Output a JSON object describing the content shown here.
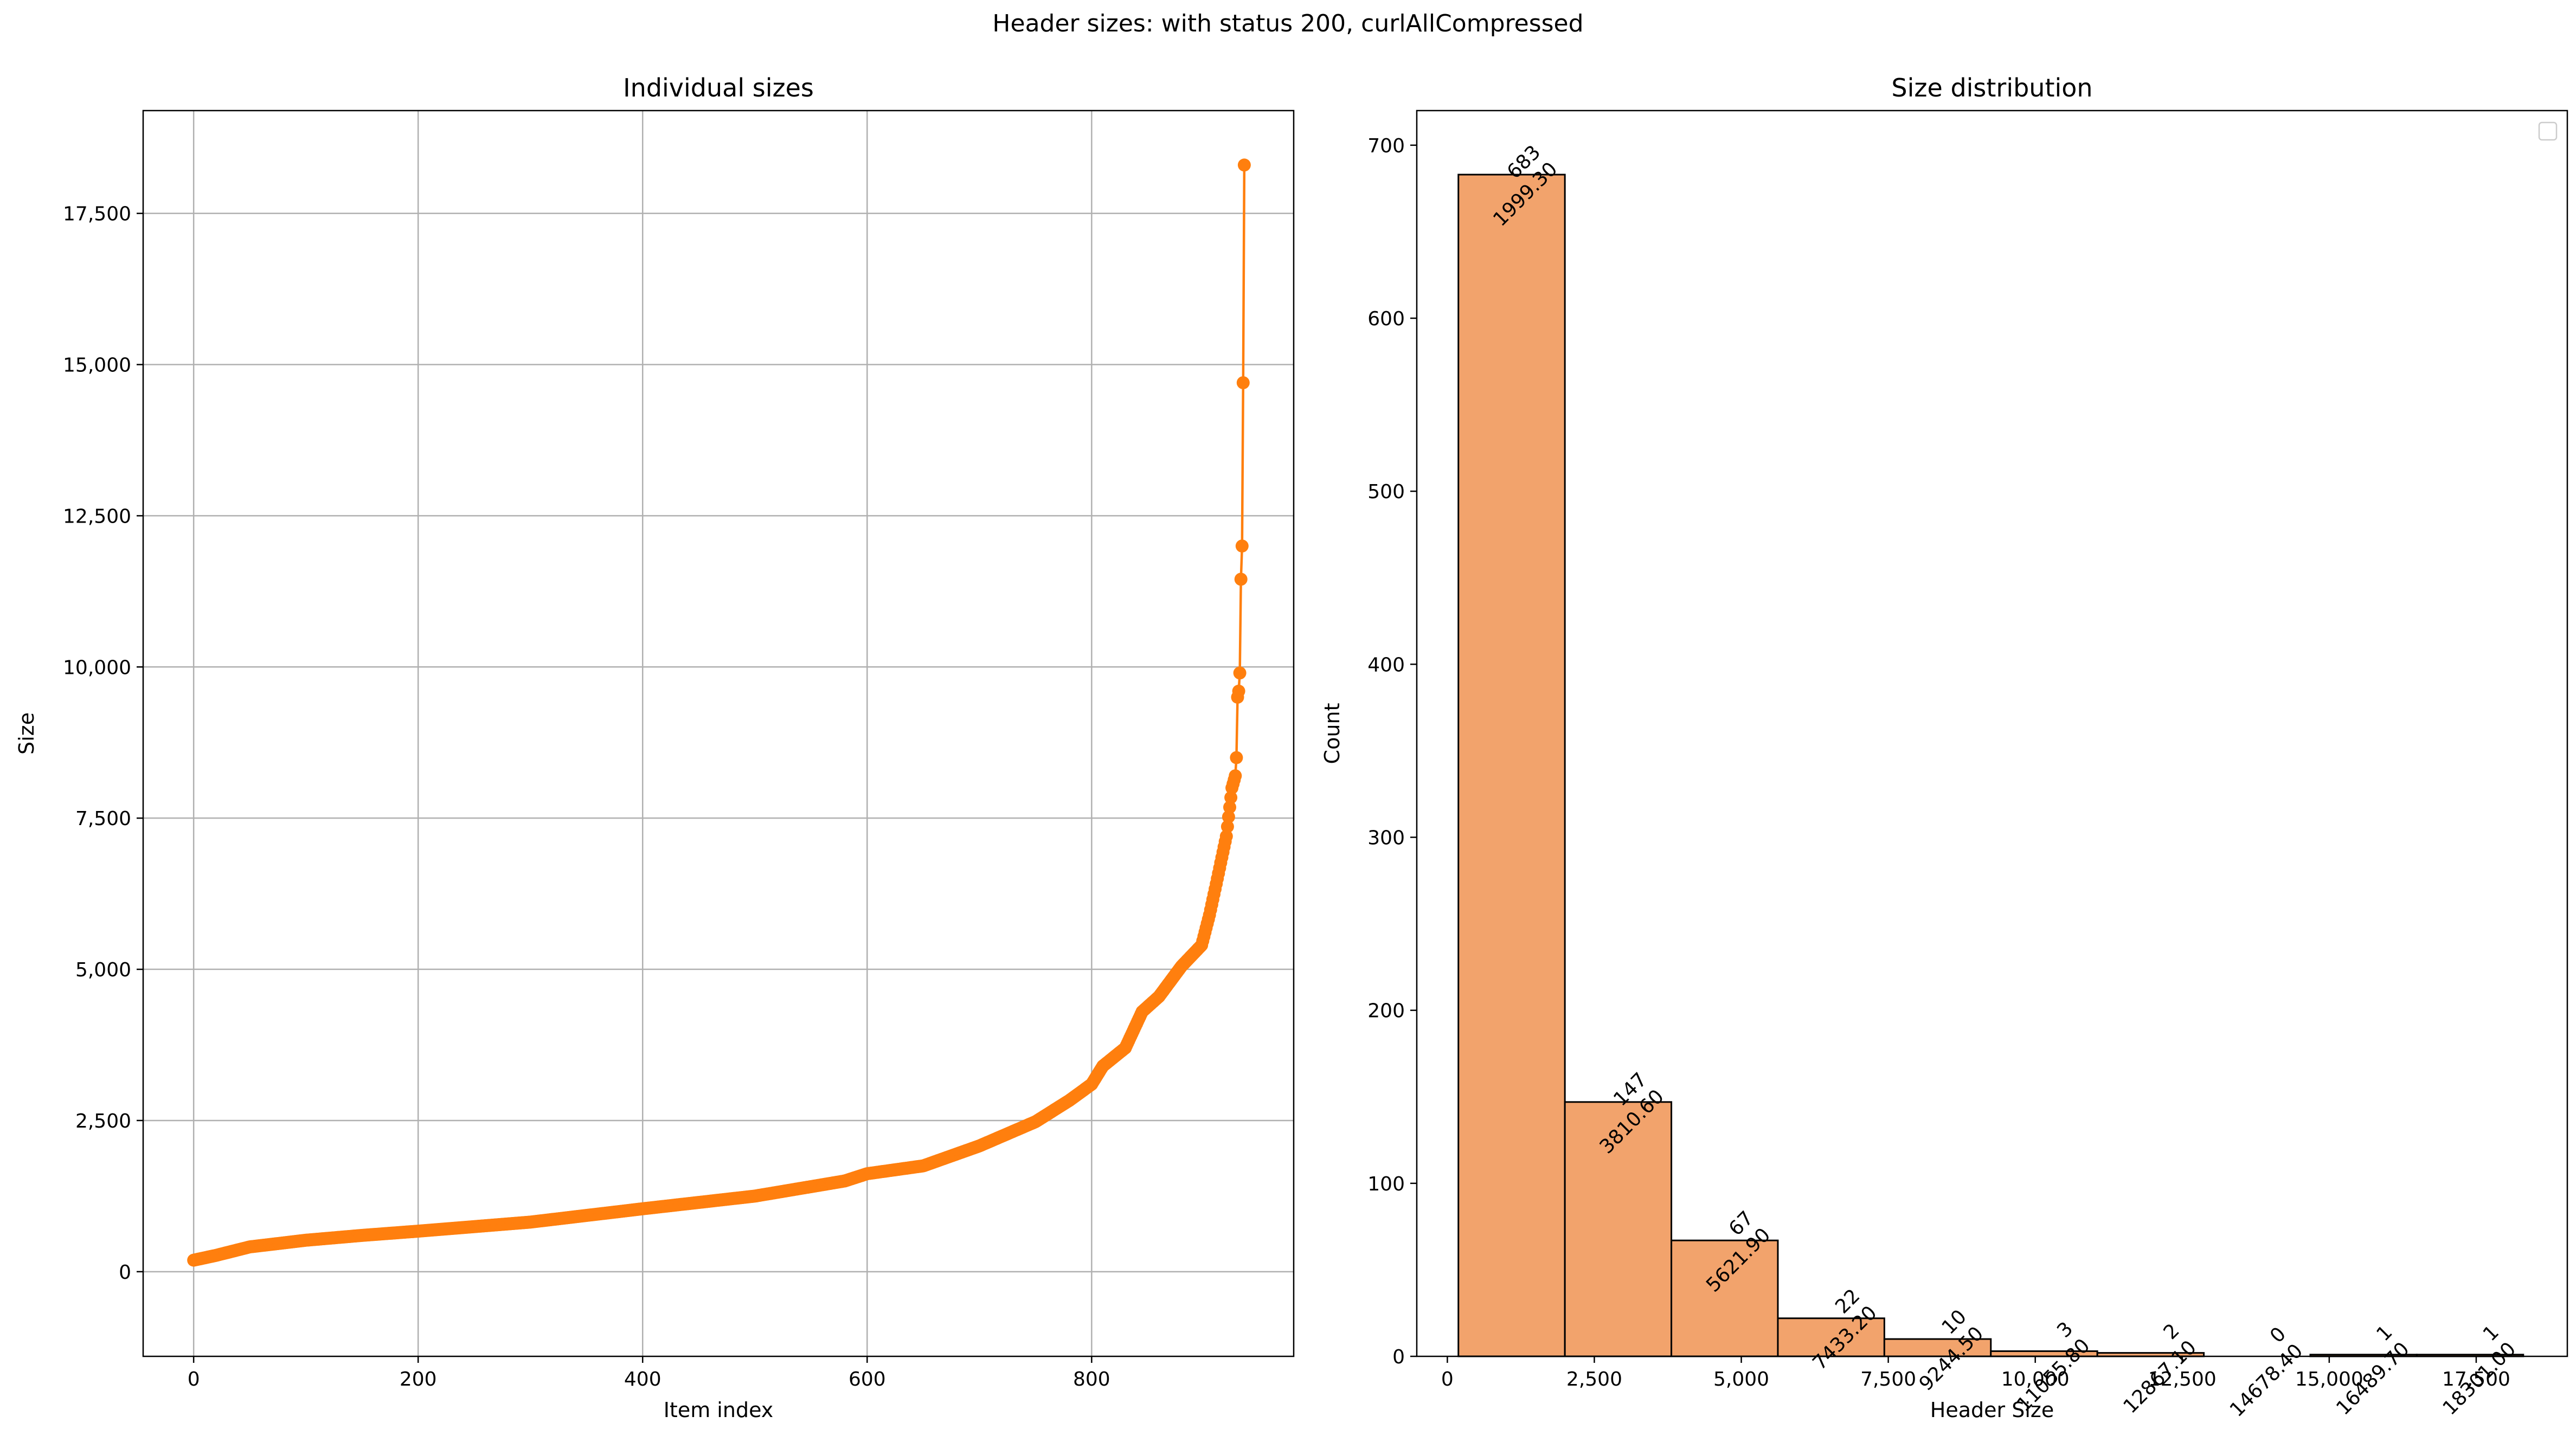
{
  "figure": {
    "suptitle": "Header sizes: with status 200, curlAllCompressed"
  },
  "colors": {
    "line": "#ff7f0e",
    "bar_fill": "#f2a36c",
    "bar_edge": "#000000",
    "grid": "#b0b0b0"
  },
  "chart_data": [
    {
      "type": "line",
      "title": "Individual sizes",
      "xlabel": "Item index",
      "ylabel": "Size",
      "xlim": [
        -45,
        980
      ],
      "ylim": [
        -1400,
        19200
      ],
      "grid": true,
      "marker": "circle",
      "x_ticks": [
        0,
        200,
        400,
        600,
        800
      ],
      "x_tick_labels": [
        "0",
        "200",
        "400",
        "600",
        "800"
      ],
      "y_ticks": [
        0,
        2500,
        5000,
        7500,
        10000,
        12500,
        15000,
        17500
      ],
      "y_tick_labels": [
        "0",
        "2,500",
        "5,000",
        "7,500",
        "10,000",
        "12,500",
        "15,000",
        "17,500"
      ],
      "n_points": 936,
      "curve_knots": [
        [
          0,
          190
        ],
        [
          20,
          270
        ],
        [
          50,
          410
        ],
        [
          100,
          520
        ],
        [
          150,
          600
        ],
        [
          200,
          670
        ],
        [
          300,
          820
        ],
        [
          400,
          1040
        ],
        [
          500,
          1250
        ],
        [
          580,
          1500
        ],
        [
          600,
          1620
        ],
        [
          650,
          1750
        ],
        [
          700,
          2080
        ],
        [
          750,
          2480
        ],
        [
          780,
          2830
        ],
        [
          800,
          3100
        ],
        [
          810,
          3400
        ],
        [
          830,
          3700
        ],
        [
          845,
          4300
        ],
        [
          860,
          4550
        ],
        [
          880,
          5050
        ],
        [
          898,
          5400
        ],
        [
          905,
          5900
        ],
        [
          912,
          6500
        ],
        [
          920,
          7200
        ],
        [
          925,
          8000
        ],
        [
          928,
          8200
        ]
      ],
      "tail_points": [
        [
          929,
          8500
        ],
        [
          930,
          9500
        ],
        [
          931,
          9600
        ],
        [
          932,
          9900
        ],
        [
          933,
          11450
        ],
        [
          934,
          12000
        ],
        [
          935,
          14700
        ],
        [
          936,
          18300
        ]
      ]
    },
    {
      "type": "bar",
      "title": "Size distribution",
      "xlabel": "Header Size",
      "ylabel": "Count",
      "xlim": [
        -520,
        19050
      ],
      "ylim": [
        0,
        720
      ],
      "grid": false,
      "legend": "top-right (empty)",
      "x_ticks": [
        0,
        2500,
        5000,
        7500,
        10000,
        12500,
        15000,
        17500
      ],
      "x_tick_labels": [
        "0",
        "2,500",
        "5,000",
        "7,500",
        "10,000",
        "12,500",
        "15,000",
        "17,500"
      ],
      "y_ticks": [
        0,
        100,
        200,
        300,
        400,
        500,
        600,
        700
      ],
      "y_tick_labels": [
        "0",
        "100",
        "200",
        "300",
        "400",
        "500",
        "600",
        "700"
      ],
      "bin_start": 188,
      "bin_width": 1811.3,
      "counts": [
        683,
        147,
        67,
        22,
        10,
        3,
        2,
        0,
        1,
        1
      ],
      "bar_labels": [
        {
          "count": "683",
          "edge": "1999.30"
        },
        {
          "count": "147",
          "edge": "3810.60"
        },
        {
          "count": "67",
          "edge": "5621.90"
        },
        {
          "count": "22",
          "edge": "7433.20"
        },
        {
          "count": "10",
          "edge": "9244.50"
        },
        {
          "count": "3",
          "edge": "11055.80"
        },
        {
          "count": "2",
          "edge": "12867.10"
        },
        {
          "count": "0",
          "edge": "14678.40"
        },
        {
          "count": "1",
          "edge": "16489.70"
        },
        {
          "count": "1",
          "edge": "18301.00"
        }
      ]
    }
  ]
}
